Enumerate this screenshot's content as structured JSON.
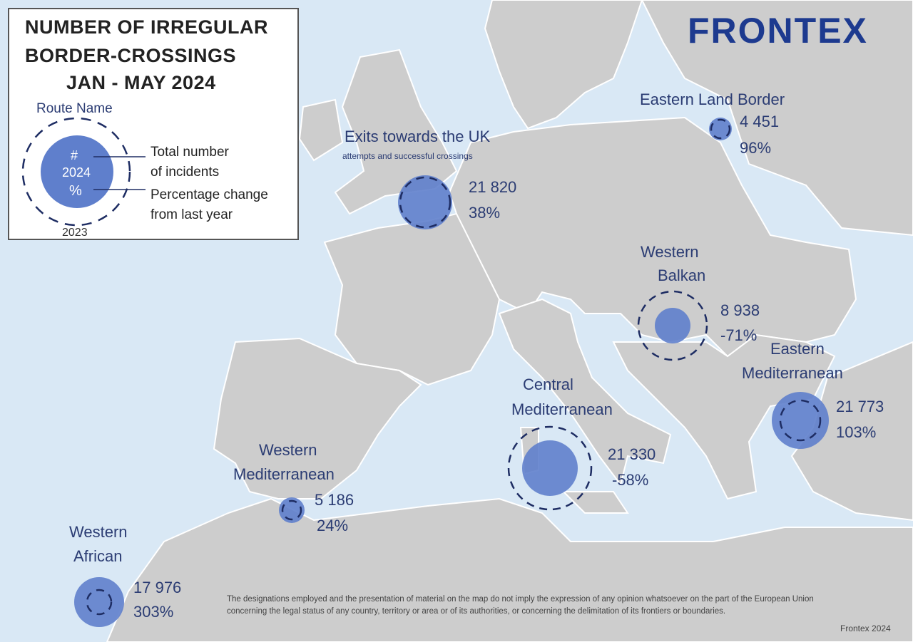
{
  "title": {
    "line1": "NUMBER OF IRREGULAR",
    "line2": "BORDER-CROSSINGS",
    "line3": "JAN - MAY 2024"
  },
  "logo": "FRONTEX",
  "legend": {
    "route_name": "Route Name",
    "hash": "#",
    "year_current": "2024",
    "percent": "%",
    "year_previous": "2023",
    "total_line1": "Total number",
    "total_line2": "of incidents",
    "change_line1": "Percentage change",
    "change_line2": "from last year"
  },
  "routes": [
    {
      "name1": "Exits towards the UK",
      "name2": "",
      "subtitle": "attempts and successful crossings",
      "total": "21 820",
      "change": "38%"
    },
    {
      "name1": "Eastern Land Border",
      "name2": "",
      "total": "4 451",
      "change": "96%"
    },
    {
      "name1": "Western",
      "name2": "Balkan",
      "total": "8 938",
      "change": "-71%"
    },
    {
      "name1": "Eastern",
      "name2": "Mediterranean",
      "total": "21 773",
      "change": "103%"
    },
    {
      "name1": "Central",
      "name2": "Mediterranean",
      "total": "21 330",
      "change": "-58%"
    },
    {
      "name1": "Western",
      "name2": "Mediterranean",
      "total": "5 186",
      "change": "24%"
    },
    {
      "name1": "Western",
      "name2": "African",
      "total": "17 976",
      "change": "303%"
    }
  ],
  "disclaimer": "The designations employed and the presentation of material on the map do not imply the expression of any opinion whatsoever on the part of the European Union concerning the legal status of any country, territory or area or of its authorities, or concerning the delimitation of its frontiers or boundaries.",
  "credit": "Frontex 2024",
  "colors": {
    "sea": "#d9e8f5",
    "land": "#cdcdcd",
    "circle": "#5f7fcc",
    "dash": "#1e2d63",
    "text": "#2b3c73",
    "logo": "#1d3a8f"
  }
}
